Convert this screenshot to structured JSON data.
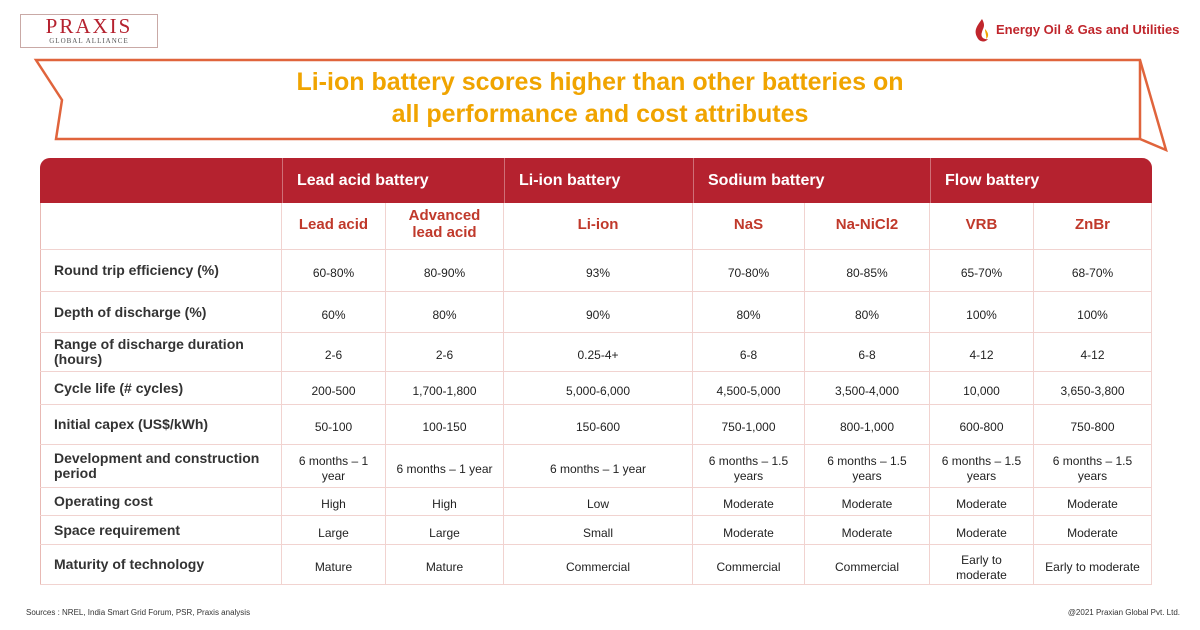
{
  "header": {
    "brand": "PRAXIS",
    "brand_tagline": "GLOBAL ALLIANCE",
    "partner": "Energy Oil & Gas and Utilities"
  },
  "title": [
    "Li-ion battery scores higher than other batteries on",
    "all performance and cost attributes"
  ],
  "table": {
    "groups": [
      {
        "name": "Lead acid battery",
        "columns": [
          "Lead acid",
          "Advanced lead acid"
        ]
      },
      {
        "name": "Li-ion battery",
        "columns": [
          "Li-ion"
        ]
      },
      {
        "name": "Sodium battery",
        "columns": [
          "NaS",
          "Na-NiCl2"
        ]
      },
      {
        "name": "Flow battery",
        "columns": [
          "VRB",
          "ZnBr"
        ]
      }
    ],
    "rows": [
      {
        "label": "Round trip efficiency (%)",
        "values": [
          "60-80%",
          "80-90%",
          "93%",
          "70-80%",
          "80-85%",
          "65-70%",
          "68-70%"
        ]
      },
      {
        "label": "Depth of discharge (%)",
        "values": [
          "60%",
          "80%",
          "90%",
          "80%",
          "80%",
          "100%",
          "100%"
        ]
      },
      {
        "label": "Range of discharge duration (hours)",
        "values": [
          "2-6",
          "2-6",
          "0.25-4+",
          "6-8",
          "6-8",
          "4-12",
          "4-12"
        ]
      },
      {
        "label": "Cycle life (# cycles)",
        "values": [
          "200-500",
          "1,700-1,800",
          "5,000-6,000",
          "4,500-5,000",
          "3,500-4,000",
          "10,000",
          "3,650-3,800"
        ]
      },
      {
        "label": "Initial capex (US$/kWh)",
        "values": [
          "50-100",
          "100-150",
          "150-600",
          "750-1,000",
          "800-1,000",
          "600-800",
          "750-800"
        ]
      },
      {
        "label": "Development and construction period",
        "values": [
          "6 months – 1 year",
          "6 months – 1 year",
          "6 months – 1 year",
          "6 months – 1.5 years",
          "6 months – 1.5 years",
          "6 months – 1.5 years",
          "6 months –  1.5 years"
        ]
      },
      {
        "label": "Operating cost",
        "values": [
          "High",
          "High",
          "Low",
          "Moderate",
          "Moderate",
          "Moderate",
          "Moderate"
        ]
      },
      {
        "label": "Space requirement",
        "values": [
          "Large",
          "Large",
          "Small",
          "Moderate",
          "Moderate",
          "Moderate",
          "Moderate"
        ]
      },
      {
        "label": "Maturity of technology",
        "values": [
          "Mature",
          "Mature",
          "Commercial",
          "Commercial",
          "Commercial",
          "Early to moderate",
          "Early to moderate"
        ]
      }
    ]
  },
  "footer": {
    "sources": "Sources : NREL, India Smart Grid Forum, PSR, Praxis analysis",
    "copyright": "@2021 Praxian Global Pvt. Ltd."
  }
}
